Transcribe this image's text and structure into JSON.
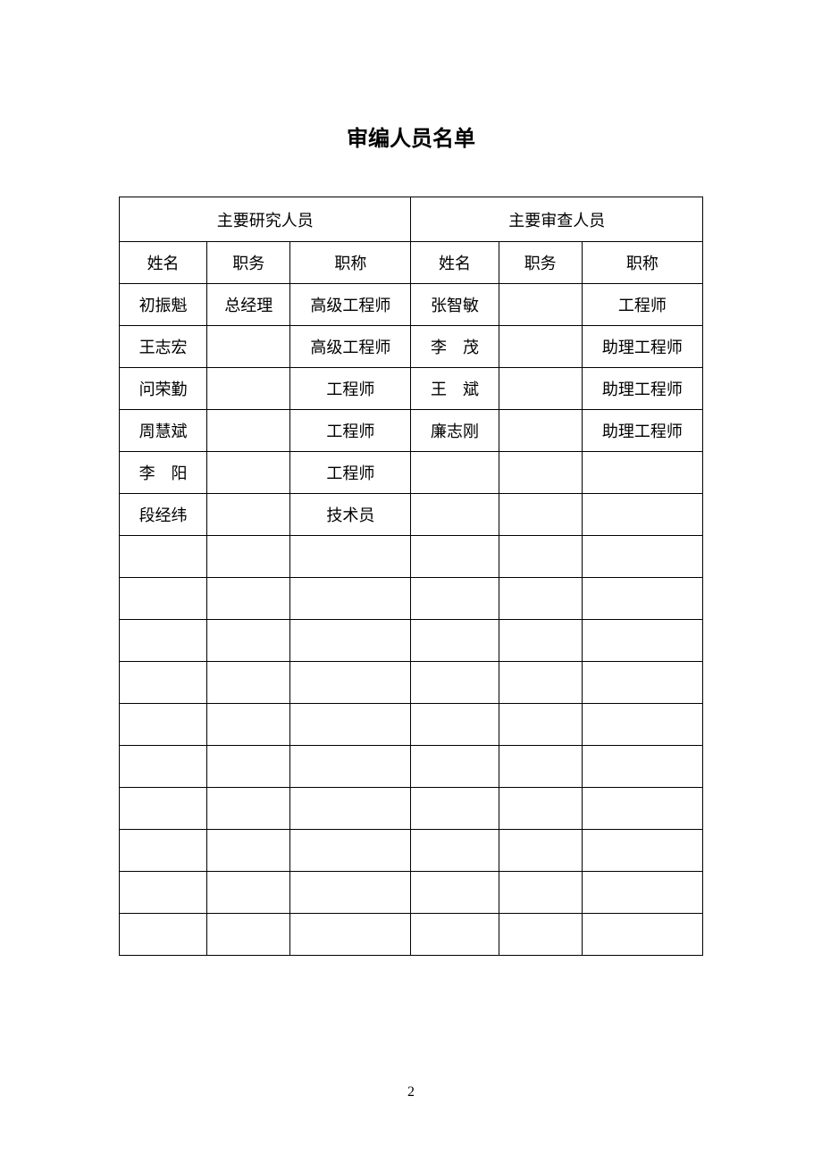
{
  "title": "审编人员名单",
  "page_number": "2",
  "table": {
    "group_headers": [
      "主要研究人员",
      "主要审查人员"
    ],
    "columns": [
      "姓名",
      "职务",
      "职称",
      "姓名",
      "职务",
      "职称"
    ],
    "rows": [
      [
        "初振魁",
        "总经理",
        "高级工程师",
        "张智敏",
        "",
        "工程师"
      ],
      [
        "王志宏",
        "",
        "高级工程师",
        "李　茂",
        "",
        "助理工程师"
      ],
      [
        "问荣勤",
        "",
        "工程师",
        "王　斌",
        "",
        "助理工程师"
      ],
      [
        "周慧斌",
        "",
        "工程师",
        "廉志刚",
        "",
        "助理工程师"
      ],
      [
        "李　阳",
        "",
        "工程师",
        "",
        "",
        ""
      ],
      [
        "段经纬",
        "",
        "技术员",
        "",
        "",
        ""
      ],
      [
        "",
        "",
        "",
        "",
        "",
        ""
      ],
      [
        "",
        "",
        "",
        "",
        "",
        ""
      ],
      [
        "",
        "",
        "",
        "",
        "",
        ""
      ],
      [
        "",
        "",
        "",
        "",
        "",
        ""
      ],
      [
        "",
        "",
        "",
        "",
        "",
        ""
      ],
      [
        "",
        "",
        "",
        "",
        "",
        ""
      ],
      [
        "",
        "",
        "",
        "",
        "",
        ""
      ],
      [
        "",
        "",
        "",
        "",
        "",
        ""
      ],
      [
        "",
        "",
        "",
        "",
        "",
        ""
      ],
      [
        "",
        "",
        "",
        "",
        "",
        ""
      ]
    ]
  },
  "colors": {
    "background": "#ffffff",
    "text": "#000000",
    "border": "#000000"
  }
}
